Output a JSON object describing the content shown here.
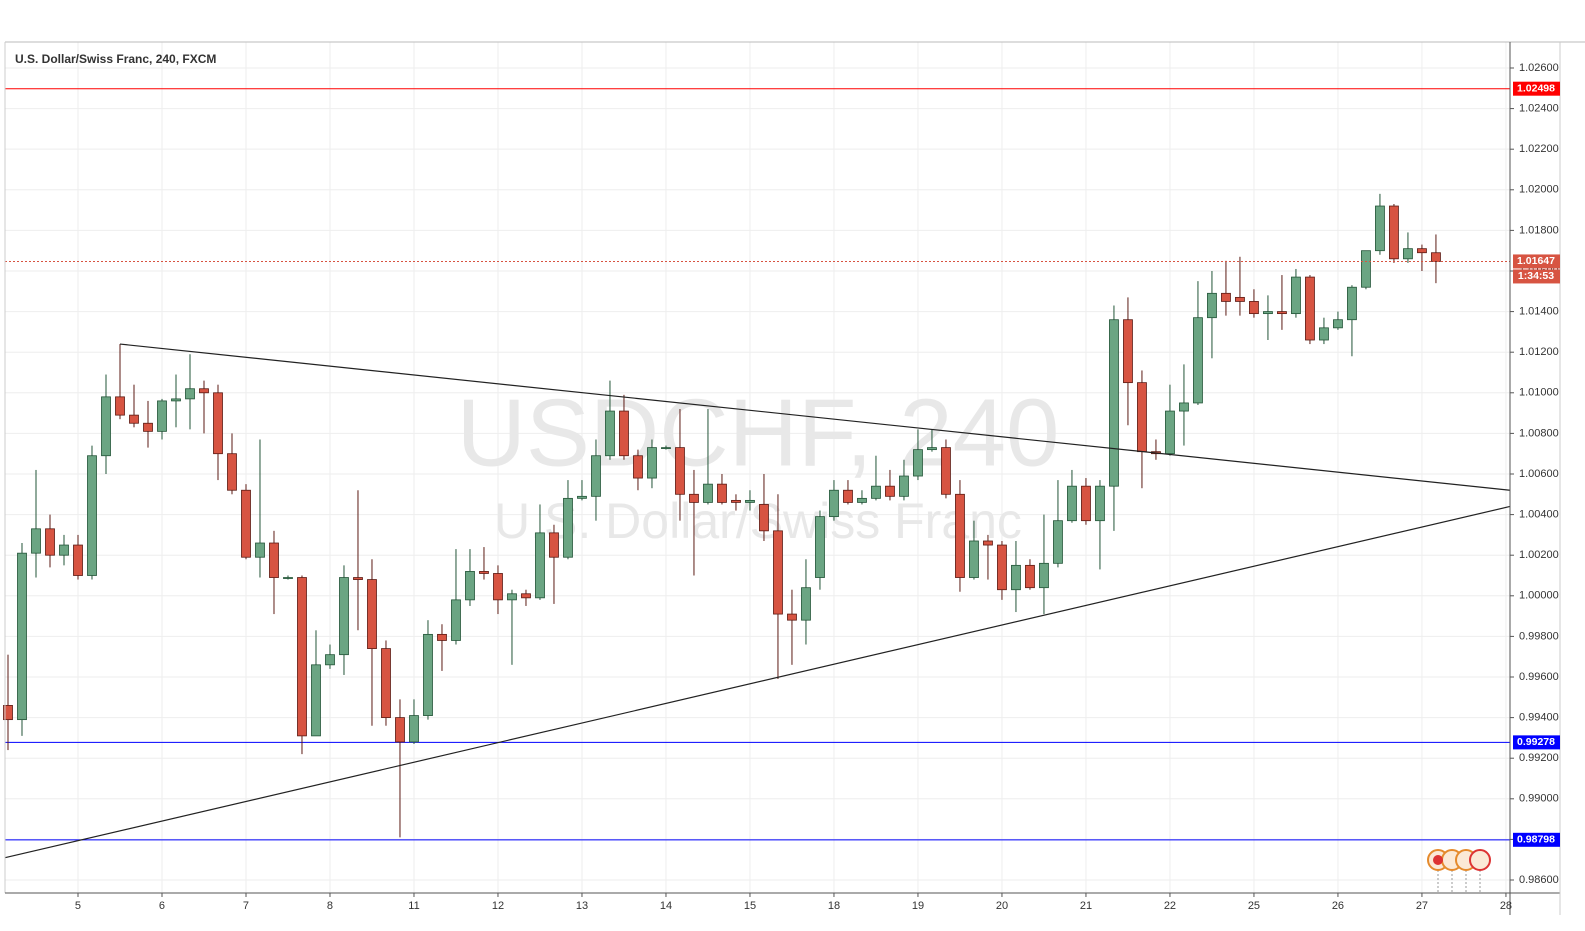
{
  "chart_data": {
    "type": "candlestick",
    "title": "U.S. Dollar/Swiss Franc, 240, FXCM",
    "watermark": "USDCHF, 240",
    "watermark_subtitle": "U.S. Dollar/Swiss Franc",
    "countdown": "1:34:53",
    "up_color": "#6ba583",
    "down_color": "#d75442",
    "grid": true,
    "xlim": [
      -0.214,
      107.29
    ],
    "ylim": [
      0.98536,
      1.02728
    ],
    "xticks": [
      {
        "value": 5,
        "label": "5"
      },
      {
        "value": 11,
        "label": "6"
      },
      {
        "value": 17,
        "label": "7"
      },
      {
        "value": 23,
        "label": "8"
      },
      {
        "value": 29,
        "label": "11"
      },
      {
        "value": 35,
        "label": "12"
      },
      {
        "value": 41,
        "label": "13"
      },
      {
        "value": 47,
        "label": "14"
      },
      {
        "value": 53,
        "label": "15"
      },
      {
        "value": 59,
        "label": "18"
      },
      {
        "value": 65,
        "label": "19"
      },
      {
        "value": 71,
        "label": "20"
      },
      {
        "value": 77,
        "label": "21"
      },
      {
        "value": 83,
        "label": "22"
      },
      {
        "value": 89,
        "label": "25"
      },
      {
        "value": 95,
        "label": "26"
      },
      {
        "value": 101,
        "label": "27"
      },
      {
        "value": 107,
        "label": "28"
      }
    ],
    "yticks": [
      {
        "value": 1.026,
        "label": "1.02600"
      },
      {
        "value": 1.024,
        "label": "1.02400"
      },
      {
        "value": 1.022,
        "label": "1.02200"
      },
      {
        "value": 1.02,
        "label": "1.02000"
      },
      {
        "value": 1.018,
        "label": "1.01800"
      },
      {
        "value": 1.016,
        "label": "1.01600"
      },
      {
        "value": 1.014,
        "label": "1.01400"
      },
      {
        "value": 1.012,
        "label": "1.01200"
      },
      {
        "value": 1.01,
        "label": "1.01000"
      },
      {
        "value": 1.008,
        "label": "1.00800"
      },
      {
        "value": 1.006,
        "label": "1.00600"
      },
      {
        "value": 1.004,
        "label": "1.00400"
      },
      {
        "value": 1.002,
        "label": "1.00200"
      },
      {
        "value": 1.0,
        "label": "1.00000"
      },
      {
        "value": 0.998,
        "label": "0.99800"
      },
      {
        "value": 0.996,
        "label": "0.99600"
      },
      {
        "value": 0.994,
        "label": "0.99400"
      },
      {
        "value": 0.992,
        "label": "0.99200"
      },
      {
        "value": 0.99,
        "label": "0.99000"
      },
      {
        "value": 0.988,
        "label": "0.98800"
      },
      {
        "value": 0.986,
        "label": "0.98600"
      }
    ],
    "levels": [
      {
        "value": 1.02498,
        "color": "#ff0000"
      },
      {
        "value": 0.99278,
        "color": "#0000ff"
      },
      {
        "value": 0.98798,
        "color": "#0000ff"
      }
    ],
    "trendlines": [
      {
        "x": [
          8,
          107.29
        ],
        "y": [
          1.0124,
          1.0052
        ]
      },
      {
        "x": [
          -0.214,
          107.29
        ],
        "y": [
          0.9871,
          1.0044
        ]
      }
    ],
    "open": [
      0.9946,
      0.9939,
      1.0021,
      1.0033,
      1.002,
      1.0025,
      1.001,
      1.0069,
      1.0098,
      1.0089,
      1.0085,
      1.0081,
      1.0096,
      1.0097,
      1.0102,
      1.01,
      1.007,
      1.0052,
      1.0019,
      1.0026,
      1.0009,
      1.0009,
      0.9931,
      0.9966,
      0.9971,
      1.0009,
      1.0008,
      0.9974,
      0.994,
      0.9928,
      0.9941,
      0.9981,
      0.9978,
      0.9998,
      1.0012,
      1.0011,
      0.9998,
      1.0001,
      0.9999,
      1.0031,
      1.0019,
      1.0048,
      1.0049,
      1.0069,
      1.0091,
      1.0069,
      1.0058,
      1.0073,
      1.0073,
      1.005,
      1.0046,
      1.0055,
      1.0047,
      1.0046,
      1.0045,
      1.0032,
      0.9991,
      0.9988,
      1.0009,
      1.0039,
      1.0052,
      1.0046,
      1.0048,
      1.0054,
      1.0049,
      1.0059,
      1.0072,
      1.0073,
      1.005,
      1.0009,
      1.0027,
      1.0025,
      1.0003,
      1.0015,
      1.0004,
      1.0016,
      1.0037,
      1.0054,
      1.0037,
      1.0054,
      1.0136,
      1.0105,
      1.0071,
      1.007,
      1.0091,
      1.0095,
      1.0137,
      1.0149,
      1.0147,
      1.0145,
      1.0139,
      1.014,
      1.0139,
      1.0157,
      1.0126,
      1.0132,
      1.0136,
      1.0152,
      1.017,
      1.0192,
      1.0166,
      1.0171,
      1.0169
    ],
    "high": [
      0.9971,
      1.0026,
      1.0062,
      1.004,
      1.003,
      1.003,
      1.0074,
      1.0109,
      1.0124,
      1.0104,
      1.0096,
      1.0097,
      1.0109,
      1.0119,
      1.0106,
      1.0104,
      1.008,
      1.0055,
      1.0077,
      1.0032,
      1.001,
      1.001,
      0.9983,
      0.9976,
      1.0015,
      1.0052,
      1.0018,
      0.9978,
      0.9949,
      0.9949,
      0.9988,
      0.9986,
      1.0023,
      1.0023,
      1.0024,
      1.0015,
      1.0003,
      1.0003,
      1.0045,
      1.0035,
      1.0057,
      1.0057,
      1.0077,
      1.0106,
      1.0099,
      1.0072,
      1.0077,
      1.0074,
      1.0092,
      1.0062,
      1.0092,
      1.006,
      1.005,
      1.0052,
      1.006,
      1.005,
      1.0003,
      1.0018,
      1.0042,
      1.0057,
      1.0057,
      1.0052,
      1.0069,
      1.0062,
      1.0067,
      1.0082,
      1.0082,
      1.0077,
      1.0057,
      1.0037,
      1.003,
      1.0027,
      1.0027,
      1.0018,
      1.004,
      1.0057,
      1.0062,
      1.0058,
      1.0057,
      1.0143,
      1.0147,
      1.0111,
      1.0077,
      1.0104,
      1.0114,
      1.0155,
      1.016,
      1.0165,
      1.0167,
      1.0151,
      1.0148,
      1.0158,
      1.0161,
      1.0158,
      1.0137,
      1.014,
      1.0153,
      1.017,
      1.0198,
      1.0193,
      1.0179,
      1.0173,
      1.0178
    ],
    "low": [
      0.9924,
      0.9931,
      1.0009,
      1.0014,
      1.0015,
      1.0008,
      1.0008,
      1.006,
      1.0087,
      1.0083,
      1.0073,
      1.0077,
      1.0083,
      1.0082,
      1.008,
      1.0057,
      1.005,
      1.0018,
      1.0009,
      0.9991,
      1.0008,
      0.9922,
      0.9931,
      0.9964,
      0.9961,
      0.9983,
      0.9936,
      0.9936,
      0.9881,
      0.9927,
      0.9939,
      0.9963,
      0.9976,
      0.9995,
      1.0008,
      0.9991,
      0.9966,
      0.9995,
      0.9998,
      0.9996,
      1.0018,
      1.0047,
      1.0037,
      1.0067,
      1.0067,
      1.0052,
      1.0053,
      1.0072,
      1.0037,
      1.001,
      1.0045,
      1.0045,
      1.0042,
      1.0042,
      1.0027,
      0.9959,
      0.9966,
      0.9976,
      1.0003,
      1.0037,
      1.0045,
      1.0045,
      1.0047,
      1.0047,
      1.0047,
      1.0057,
      1.0071,
      1.0048,
      1.0002,
      1.0008,
      1.0008,
      0.9998,
      0.9992,
      1.0003,
      0.9991,
      1.0014,
      1.0036,
      1.0035,
      1.0013,
      1.0032,
      1.0084,
      1.0053,
      1.0067,
      1.0069,
      1.0074,
      1.0094,
      1.0117,
      1.0138,
      1.0138,
      1.0137,
      1.0126,
      1.0131,
      1.0137,
      1.0124,
      1.0124,
      1.0131,
      1.0118,
      1.0151,
      1.0168,
      1.0164,
      1.0164,
      1.016,
      1.0154
    ],
    "close": [
      0.9939,
      1.0021,
      1.0033,
      1.002,
      1.0025,
      1.001,
      1.0069,
      1.0098,
      1.0089,
      1.0085,
      1.0081,
      1.0096,
      1.0097,
      1.0102,
      1.01,
      1.007,
      1.0052,
      1.0019,
      1.0026,
      1.0009,
      1.0009,
      0.9931,
      0.9966,
      0.9971,
      1.0009,
      1.0008,
      0.9974,
      0.994,
      0.9928,
      0.9941,
      0.9981,
      0.9978,
      0.9998,
      1.0012,
      1.0011,
      0.9998,
      1.0001,
      0.9999,
      1.0031,
      1.0019,
      1.0048,
      1.0049,
      1.0069,
      1.0091,
      1.0069,
      1.0058,
      1.0073,
      1.0073,
      1.005,
      1.0046,
      1.0055,
      1.0046,
      1.0046,
      1.0047,
      1.0032,
      0.9991,
      0.9988,
      1.0004,
      1.0039,
      1.0052,
      1.0046,
      1.0048,
      1.0054,
      1.0049,
      1.0059,
      1.0072,
      1.0073,
      1.005,
      1.0009,
      1.0027,
      1.0025,
      1.0003,
      1.0015,
      1.0004,
      1.0016,
      1.0037,
      1.0054,
      1.0037,
      1.0054,
      1.0136,
      1.0105,
      1.0071,
      1.007,
      1.0091,
      1.0095,
      1.0137,
      1.0149,
      1.0145,
      1.0145,
      1.0139,
      1.014,
      1.0139,
      1.0157,
      1.0126,
      1.0132,
      1.0136,
      1.0152,
      1.017,
      1.0192,
      1.0166,
      1.0171,
      1.0169,
      1.01647
    ]
  }
}
